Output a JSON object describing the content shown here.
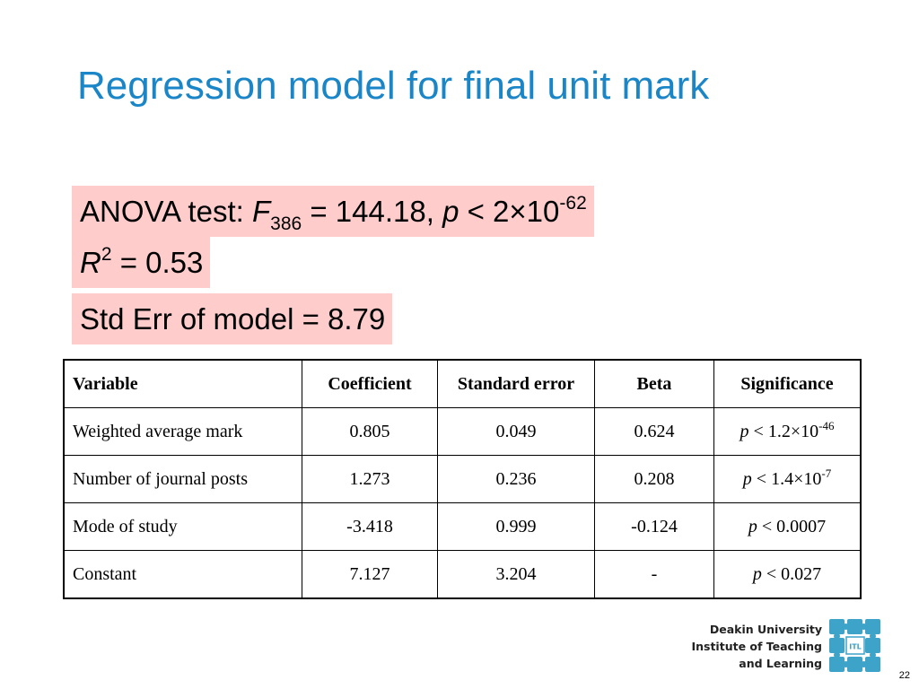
{
  "slide": {
    "title": "Regression model for final unit mark",
    "page_number": "22"
  },
  "stats": {
    "anova_label": "ANOVA test: ",
    "f_symbol": "F",
    "f_subscript": "386",
    "f_eq": " = 144.18, ",
    "p_symbol": "p",
    "p_rest": " < 2×10",
    "p_exponent": "-62",
    "r2_symbol": "R",
    "r2_exponent": "2",
    "r2_value": " = 0.53",
    "std_err": "Std Err of model = 8.79"
  },
  "table": {
    "headers": [
      "Variable",
      "Coefficient",
      "Standard error",
      "Beta",
      "Significance"
    ],
    "rows": [
      {
        "variable": "Weighted average mark",
        "coefficient": "0.805",
        "std_error": "0.049",
        "beta": "0.624",
        "sig_p": "p",
        "sig_rest": " < 1.2×10",
        "sig_exp": "-46"
      },
      {
        "variable": "Number of journal posts",
        "coefficient": "1.273",
        "std_error": "0.236",
        "beta": "0.208",
        "sig_p": "p",
        "sig_rest": " < 1.4×10",
        "sig_exp": "-7"
      },
      {
        "variable": "Mode of study",
        "coefficient": "-3.418",
        "std_error": "0.999",
        "beta": "-0.124",
        "sig_p": "p",
        "sig_rest": " < 0.0007",
        "sig_exp": ""
      },
      {
        "variable": "Constant",
        "coefficient": "7.127",
        "std_error": "3.204",
        "beta": "-",
        "sig_p": "p",
        "sig_rest": " < 0.027",
        "sig_exp": ""
      }
    ]
  },
  "logo": {
    "line1": "Deakin University",
    "line2": "Institute of Teaching",
    "line3": "and Learning",
    "badge_text": "ITL"
  },
  "colors": {
    "title": "#1a86c7",
    "highlight": "#ffcccc",
    "logo_puzzle": "#3ea3c9"
  }
}
